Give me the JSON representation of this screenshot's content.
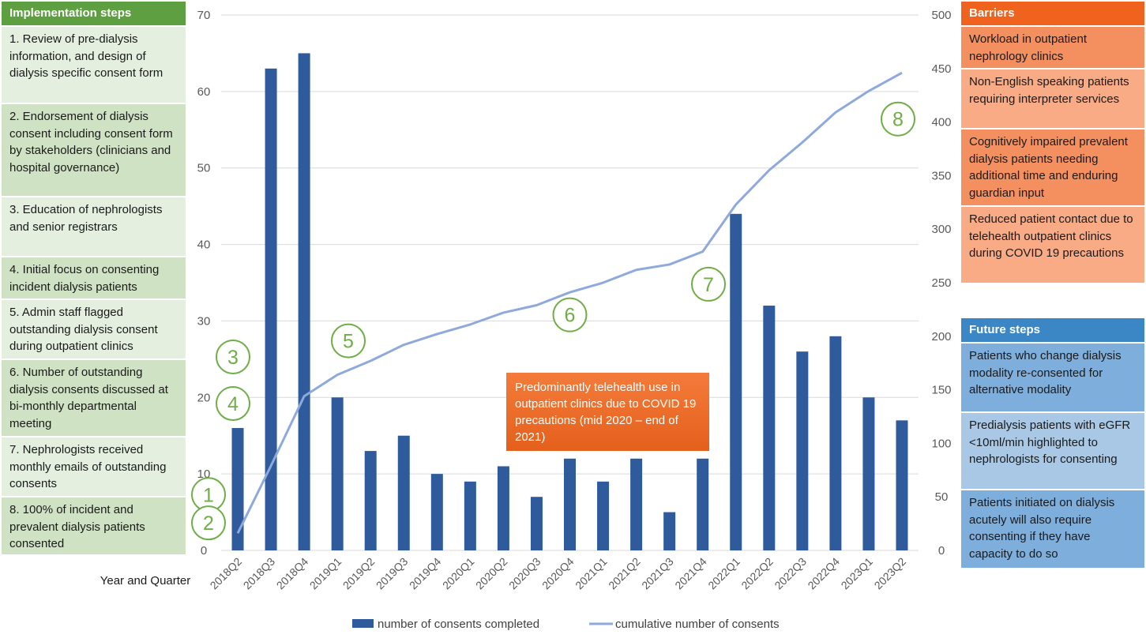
{
  "implementation": {
    "header": "Implementation steps",
    "steps": [
      "1. Review of pre-dialysis information, and design of dialysis specific consent form",
      "2. Endorsement of dialysis consent including consent form by stakeholders (clinicians and hospital governance)",
      "3. Education of nephrologists and senior registrars",
      "4. Initial focus on consenting incident dialysis patients",
      "5. Admin staff flagged outstanding dialysis consent during outpatient clinics",
      "6. Number of outstanding dialysis consents discussed at bi-monthly departmental meeting",
      "7. Nephrologists received monthly emails of outstanding consents",
      "8. 100% of incident and prevalent dialysis patients consented"
    ]
  },
  "barriers": {
    "header": "Barriers",
    "items": [
      "Workload in outpatient nephrology clinics",
      "Non-English speaking patients requiring interpreter services",
      "Cognitively impaired prevalent dialysis patients needing additional time and enduring guardian input",
      "Reduced patient contact due to telehealth outpatient clinics during COVID 19 precautions"
    ],
    "colors": [
      "#f4905f",
      "#f8ab85",
      "#f4905f",
      "#f8ab85"
    ]
  },
  "future": {
    "header": "Future steps",
    "items": [
      "Patients who change dialysis modality re-consented for alternative modality",
      "Predialysis patients with eGFR <10ml/min highlighted to nephrologists for consenting",
      "Patients initiated on dialysis acutely will also require consenting if they have capacity to do so"
    ]
  },
  "annotation": "Predominantly telehealth use in outpatient clinics due to COVID 19 precautions (mid 2020 – end of 2021)",
  "chart_data": {
    "type": "bar",
    "xlabel": "Year and Quarter",
    "categories": [
      "2018Q2",
      "2018Q3",
      "2018Q4",
      "2019Q1",
      "2019Q2",
      "2019Q3",
      "2019Q4",
      "2020Q1",
      "2020Q2",
      "2020Q3",
      "2020Q4",
      "2021Q1",
      "2021Q2",
      "2021Q3",
      "2021Q4",
      "2022Q1",
      "2022Q2",
      "2022Q3",
      "2022Q4",
      "2023Q1",
      "2023Q2"
    ],
    "series": [
      {
        "name": "number of consents completed",
        "type": "bar",
        "axis": "left",
        "color": "#2f5b9c",
        "values": [
          16,
          63,
          65,
          20,
          13,
          15,
          10,
          9,
          11,
          7,
          12,
          9,
          12,
          5,
          12,
          44,
          32,
          26,
          28,
          20,
          17
        ]
      },
      {
        "name": "cumulative number of consents",
        "type": "line",
        "axis": "right",
        "color": "#8ea9db",
        "values": [
          16,
          79,
          144,
          164,
          177,
          192,
          202,
          211,
          222,
          229,
          241,
          250,
          262,
          267,
          279,
          323,
          355,
          381,
          409,
          429,
          446
        ]
      }
    ],
    "ylim_left": [
      0,
      70
    ],
    "ylim_right": [
      0,
      500
    ],
    "yticks_left": [
      0,
      10,
      20,
      30,
      40,
      50,
      60,
      70
    ],
    "yticks_right": [
      0,
      50,
      100,
      150,
      200,
      250,
      300,
      350,
      400,
      450,
      500
    ],
    "grid": true,
    "legend_position": "bottom",
    "markers": [
      {
        "label": "1",
        "category": "2018Q2",
        "value_left": 7.3
      },
      {
        "label": "2",
        "category": "2018Q2",
        "value_left": 3.6
      },
      {
        "label": "3",
        "category": "2018Q2",
        "value_left": 25.3
      },
      {
        "label": "4",
        "category": "2018Q2",
        "value_left": 19.2
      },
      {
        "label": "5",
        "category": "2019Q2",
        "value_left": 27.4
      },
      {
        "label": "6",
        "category": "2020Q4",
        "value_left": 30.8
      },
      {
        "label": "7",
        "category": "2021Q4",
        "value_left": 34.8
      },
      {
        "label": "8",
        "category": "2023Q1",
        "value_left": 56.4
      }
    ],
    "marker_color": "#70ad47"
  }
}
